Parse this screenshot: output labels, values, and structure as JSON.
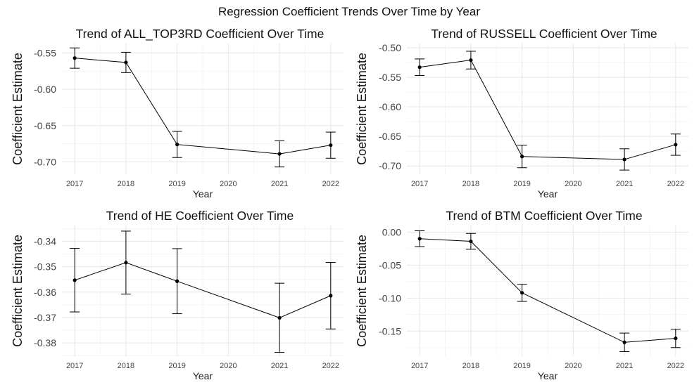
{
  "figure_title": "Regression Coefficient Trends Over Time by Year",
  "chart_data": [
    {
      "type": "line",
      "title": "Trend of ALL_TOP3RD Coefficient Over Time",
      "xlabel": "Year",
      "ylabel": "Coefficient Estimate",
      "x": [
        2017,
        2018,
        2019,
        2021,
        2022
      ],
      "y": [
        -0.557,
        -0.563,
        -0.676,
        -0.689,
        -0.677
      ],
      "err": [
        0.014,
        0.014,
        0.018,
        0.018,
        0.018
      ],
      "xlim": [
        2016.75,
        2022.25
      ],
      "ylim": [
        -0.717,
        -0.537
      ],
      "xticks": [
        2017,
        2018,
        2019,
        2020,
        2021,
        2022
      ],
      "yticks": [
        -0.7,
        -0.65,
        -0.6,
        -0.55
      ],
      "ytick_labels": [
        "-0.70",
        "-0.65",
        "-0.60",
        "-0.55"
      ],
      "grid": true
    },
    {
      "type": "line",
      "title": "Trend of RUSSELL Coefficient Over Time",
      "xlabel": "Year",
      "ylabel": "Coefficient Estimate",
      "x": [
        2017,
        2018,
        2019,
        2021,
        2022
      ],
      "y": [
        -0.533,
        -0.521,
        -0.684,
        -0.689,
        -0.664
      ],
      "err": [
        0.014,
        0.015,
        0.019,
        0.018,
        0.018
      ],
      "xlim": [
        2016.75,
        2022.25
      ],
      "ylim": [
        -0.714,
        -0.493
      ],
      "xticks": [
        2017,
        2018,
        2019,
        2020,
        2021,
        2022
      ],
      "yticks": [
        -0.7,
        -0.65,
        -0.6,
        -0.55,
        -0.5
      ],
      "ytick_labels": [
        "-0.70",
        "-0.65",
        "-0.60",
        "-0.55",
        "-0.50"
      ],
      "grid": true
    },
    {
      "type": "line",
      "title": "Trend of HE Coefficient Over Time",
      "xlabel": "Year",
      "ylabel": "Coefficient Estimate",
      "x": [
        2017,
        2018,
        2019,
        2021,
        2022
      ],
      "y": [
        -0.3553,
        -0.3484,
        -0.3557,
        -0.3701,
        -0.3614
      ],
      "err": [
        0.0125,
        0.0124,
        0.0128,
        0.0136,
        0.0131
      ],
      "xlim": [
        2016.75,
        2022.25
      ],
      "ylim": [
        -0.3852,
        -0.3338
      ],
      "xticks": [
        2017,
        2018,
        2019,
        2020,
        2021,
        2022
      ],
      "yticks": [
        -0.38,
        -0.37,
        -0.36,
        -0.35,
        -0.34
      ],
      "ytick_labels": [
        "-0.38",
        "-0.37",
        "-0.36",
        "-0.35",
        "-0.34"
      ],
      "grid": true
    },
    {
      "type": "line",
      "title": "Trend of BTM Coefficient Over Time",
      "xlabel": "Year",
      "ylabel": "Coefficient Estimate",
      "x": [
        2017,
        2018,
        2019,
        2021,
        2022
      ],
      "y": [
        -0.01,
        -0.014,
        -0.092,
        -0.167,
        -0.161
      ],
      "err": [
        0.012,
        0.012,
        0.013,
        0.014,
        0.014
      ],
      "xlim": [
        2016.75,
        2022.25
      ],
      "ylim": [
        -0.188,
        0.01
      ],
      "xticks": [
        2017,
        2018,
        2019,
        2020,
        2021,
        2022
      ],
      "yticks": [
        -0.15,
        -0.1,
        -0.05,
        0.0
      ],
      "ytick_labels": [
        "-0.15",
        "-0.10",
        "-0.05",
        "0.00"
      ],
      "grid": true
    }
  ]
}
